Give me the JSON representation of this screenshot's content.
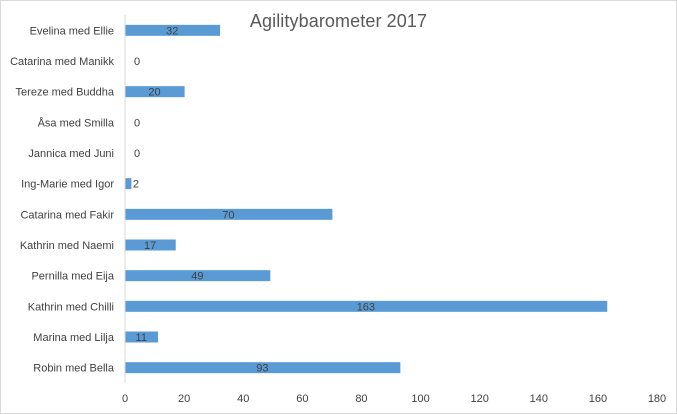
{
  "chart_data": {
    "type": "bar",
    "orientation": "horizontal",
    "title": "Agilitybarometer 2017",
    "xlabel": "",
    "ylabel": "",
    "categories": [
      "Evelina med Ellie",
      "Catarina med Manikk",
      "Tereze med Buddha",
      "Åsa med Smilla",
      "Jannica med Juni",
      "Ing-Marie med Igor",
      "Catarina med Fakir",
      "Kathrin med Naemi",
      "Pernilla med Eija",
      "Kathrin med Chilli",
      "Marina med Lilja",
      "Robin med Bella"
    ],
    "values": [
      32,
      0,
      20,
      0,
      0,
      2,
      70,
      17,
      49,
      163,
      11,
      93
    ],
    "xlim": [
      0,
      180
    ],
    "x_ticks": [
      0,
      20,
      40,
      60,
      80,
      100,
      120,
      140,
      160,
      180
    ],
    "grid": false,
    "legend": "none",
    "data_labels": true,
    "colors": {
      "bar": "#5b9bd5",
      "text": "#404040",
      "title": "#595959",
      "axis": "#d9d9d9"
    }
  }
}
